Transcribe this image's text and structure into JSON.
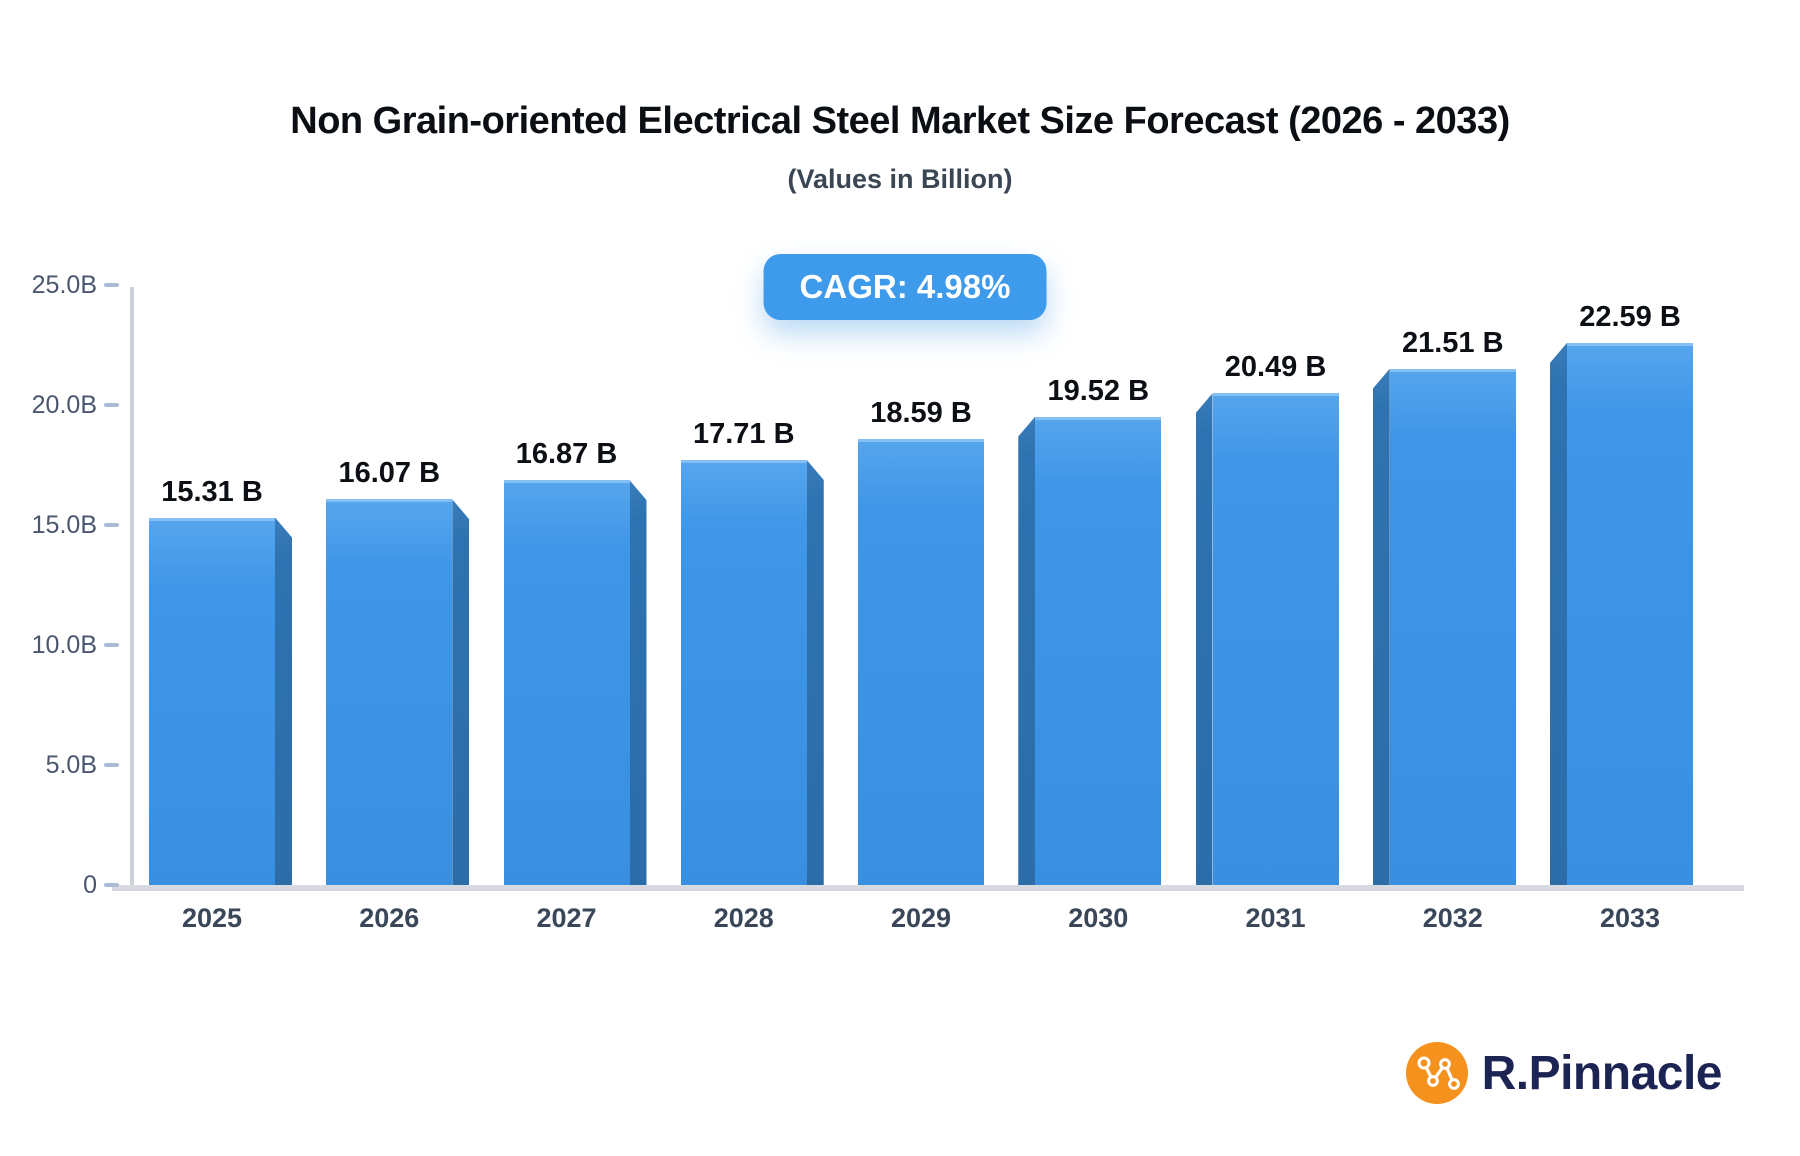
{
  "header": {
    "title": "Non Grain-oriented Electrical Steel Market Size Forecast (2026 - 2033)",
    "subtitle": "(Values in Billion)",
    "cagr_label": "CAGR: 4.98%"
  },
  "chart_data": {
    "type": "bar",
    "title": "Non Grain-oriented Electrical Steel Market Size Forecast (2026 - 2033)",
    "subtitle": "(Values in Billion)",
    "cagr_pct": 4.98,
    "categories": [
      "2025",
      "2026",
      "2027",
      "2028",
      "2029",
      "2030",
      "2031",
      "2032",
      "2033"
    ],
    "values": [
      15.31,
      16.07,
      16.87,
      17.71,
      18.59,
      19.52,
      20.49,
      21.51,
      22.59
    ],
    "value_labels": [
      "15.31 B",
      "16.07 B",
      "16.87 B",
      "17.71 B",
      "18.59 B",
      "19.52 B",
      "20.49 B",
      "21.51 B",
      "22.59 B"
    ],
    "xlabel": "",
    "ylabel": "",
    "ylim": [
      0,
      25
    ],
    "y_ticks": [
      {
        "label": "25.0B",
        "value": 25
      },
      {
        "label": "20.0B",
        "value": 20
      },
      {
        "label": "15.0B",
        "value": 15
      },
      {
        "label": "10.0B",
        "value": 10
      },
      {
        "label": "5.0B",
        "value": 5
      },
      {
        "label": "0",
        "value": 0
      }
    ],
    "grid": false,
    "legend": false,
    "bar_style": "3d-extruded",
    "bar_color": "#3f96e7",
    "bar_side_color": "#2e72b1"
  },
  "branding": {
    "logo_text": "R.Pinnacle",
    "logo_icon": "network-nodes-icon",
    "logo_text_color": "#1c2454",
    "logo_icon_bg": "#f5921e"
  },
  "colors": {
    "badge_bg": "#3e9bec",
    "badge_text": "#ffffff",
    "axis_line": "#cdd1d8",
    "tick_dash": "#a9bcd3",
    "y_label": "#4a566c",
    "x_label": "#3a4759",
    "value_label": "#0c0f14"
  }
}
